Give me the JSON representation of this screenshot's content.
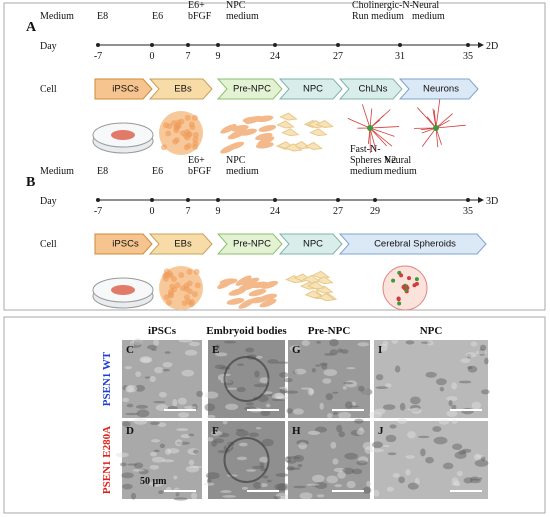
{
  "panel_a": {
    "label": "A",
    "row_labels": {
      "medium": "Medium",
      "day": "Day",
      "cell": "Cell"
    },
    "media": [
      [
        "E8"
      ],
      [
        "E6"
      ],
      [
        "E6+",
        "bFGF"
      ],
      [
        "NPC",
        "medium"
      ],
      [
        "Cholinergic-N-",
        "Run medium"
      ],
      [
        "Neural",
        "medium"
      ]
    ],
    "days": [
      -7,
      0,
      7,
      9,
      24,
      27,
      31,
      35
    ],
    "dimension": "2D",
    "cells": [
      "iPSCs",
      "EBs",
      "Pre-NPC",
      "NPC",
      "ChLNs",
      "Neurons"
    ]
  },
  "panel_b": {
    "label": "B",
    "row_labels": {
      "medium": "Medium",
      "day": "Day",
      "cell": "Cell"
    },
    "media": [
      [
        "E8"
      ],
      [
        "E6"
      ],
      [
        "E6+",
        "bFGF"
      ],
      [
        "NPC",
        "medium"
      ],
      [
        "Fast-N-",
        "Spheres V2",
        "medium"
      ],
      [
        "Neural",
        "medium"
      ]
    ],
    "days": [
      -7,
      0,
      7,
      9,
      24,
      27,
      29,
      35
    ],
    "dimension": "3D",
    "cells": [
      "iPSCs",
      "EBs",
      "Pre-NPC",
      "NPC",
      "Cerebral Spheroids"
    ]
  },
  "micrographs": {
    "columns": [
      "iPSCs",
      "Embryoid bodies",
      "Pre-NPC",
      "NPC"
    ],
    "rows": [
      "PSEN1 WT",
      "PSEN1 E280A"
    ],
    "panels": [
      [
        "C",
        "E",
        "G",
        "I"
      ],
      [
        "D",
        "F",
        "H",
        "J"
      ]
    ],
    "scale_bar": "50 μm"
  }
}
